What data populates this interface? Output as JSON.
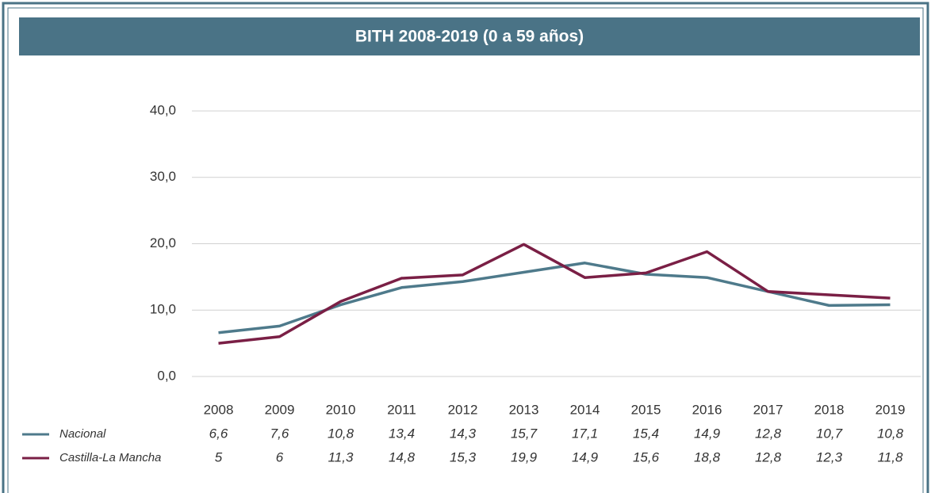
{
  "chart_data": {
    "type": "line",
    "title": "BITH 2008-2019 (0 a 59 años)",
    "categories": [
      "2008",
      "2009",
      "2010",
      "2011",
      "2012",
      "2013",
      "2014",
      "2015",
      "2016",
      "2017",
      "2018",
      "2019"
    ],
    "series": [
      {
        "name": "Nacional",
        "color": "#4e7a8b",
        "values": [
          6.6,
          7.6,
          10.8,
          13.4,
          14.3,
          15.7,
          17.1,
          15.4,
          14.9,
          12.8,
          10.7,
          10.8
        ],
        "value_labels": [
          "6,6",
          "7,6",
          "10,8",
          "13,4",
          "14,3",
          "15,7",
          "17,1",
          "15,4",
          "14,9",
          "12,8",
          "10,7",
          "10,8"
        ]
      },
      {
        "name": "Castilla-La Mancha",
        "color": "#7a1f45",
        "values": [
          5,
          6,
          11.3,
          14.8,
          15.3,
          19.9,
          14.9,
          15.6,
          18.8,
          12.8,
          12.3,
          11.8
        ],
        "value_labels": [
          "5",
          "6",
          "11,3",
          "14,8",
          "15,3",
          "19,9",
          "14,9",
          "15,6",
          "18,8",
          "12,8",
          "12,3",
          "11,8"
        ]
      }
    ],
    "ylim": [
      0,
      40
    ],
    "yticks": [
      {
        "value": 0,
        "label": "0,0"
      },
      {
        "value": 10,
        "label": "10,0"
      },
      {
        "value": 20,
        "label": "20,0"
      },
      {
        "value": 30,
        "label": "30,0"
      },
      {
        "value": 40,
        "label": "40,0"
      }
    ],
    "grid": true
  }
}
